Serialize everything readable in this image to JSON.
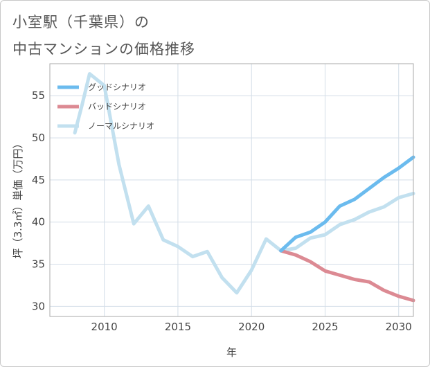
{
  "title": {
    "line1": "小室駅（千葉県）の",
    "line2": "中古マンションの価格推移"
  },
  "chart_data": {
    "type": "line",
    "title": "小室駅（千葉県）の中古マンションの価格推移",
    "xlabel": "年",
    "ylabel": "坪（3.3㎡）単価（万円）",
    "xlim": [
      2006.3,
      2031
    ],
    "ylim": [
      28.8,
      58.8
    ],
    "xticks": [
      2010,
      2015,
      2020,
      2025,
      2030
    ],
    "yticks": [
      30,
      35,
      40,
      45,
      50,
      55
    ],
    "grid": true,
    "legend_position": "top-left",
    "series": [
      {
        "name": "グッドシナリオ",
        "color": "#6bbbee",
        "x": [
          2022,
          2023,
          2024,
          2025,
          2026,
          2027,
          2028,
          2029,
          2030,
          2031
        ],
        "y": [
          36.6,
          38.2,
          38.8,
          40.0,
          41.9,
          42.7,
          44.0,
          45.3,
          46.4,
          47.7
        ]
      },
      {
        "name": "バッドシナリオ",
        "color": "#dc8a93",
        "x": [
          2022,
          2023,
          2024,
          2025,
          2026,
          2027,
          2028,
          2029,
          2030,
          2031
        ],
        "y": [
          36.6,
          36.1,
          35.3,
          34.2,
          33.7,
          33.2,
          32.9,
          31.9,
          31.2,
          30.7
        ]
      },
      {
        "name": "ノーマルシナリオ",
        "color": "#c2e0ef",
        "x": [
          2008,
          2008.5,
          2009,
          2010,
          2011,
          2012,
          2013,
          2014,
          2015,
          2016,
          2017,
          2018,
          2019,
          2020,
          2021,
          2022,
          2023,
          2024,
          2025,
          2026,
          2027,
          2028,
          2029,
          2030,
          2031
        ],
        "y": [
          50.6,
          54.0,
          57.6,
          56.2,
          46.8,
          39.8,
          41.9,
          37.9,
          37.1,
          35.9,
          36.5,
          33.4,
          31.6,
          34.3,
          38.0,
          36.6,
          36.9,
          38.1,
          38.5,
          39.7,
          40.3,
          41.2,
          41.8,
          42.9,
          43.4
        ]
      }
    ]
  }
}
